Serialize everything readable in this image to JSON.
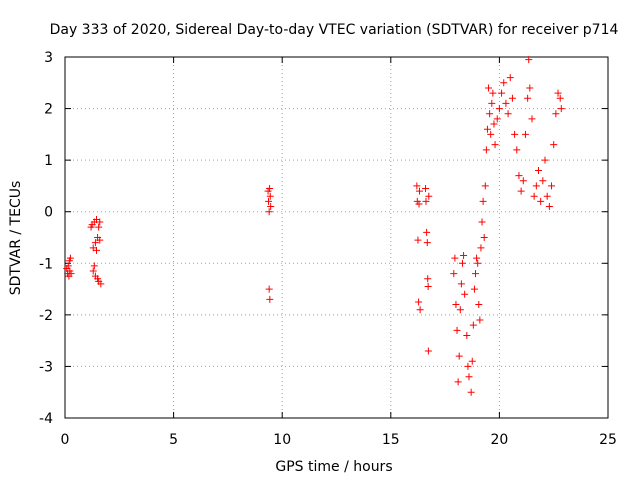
{
  "chart_data": {
    "type": "scatter",
    "title": "Day 333 of 2020, Sidereal Day-to-day VTEC variation (SDTVAR) for receiver p714",
    "xlabel": "GPS time / hours",
    "ylabel": "SDTVAR / TECUs",
    "xlim": [
      0,
      25
    ],
    "ylim": [
      -4,
      3
    ],
    "xticks": [
      "0",
      "5",
      "10",
      "15",
      "20",
      "25"
    ],
    "yticks": [
      "-4",
      "-3",
      "-2",
      "-1",
      "0",
      "1",
      "2",
      "3"
    ],
    "xtick_values": [
      0,
      5,
      10,
      15,
      20,
      25
    ],
    "ytick_values": [
      -4,
      -3,
      -2,
      -1,
      0,
      1,
      2,
      3
    ],
    "grid": true,
    "marker": "plus",
    "color": "#ff0000",
    "series": [
      {
        "points": [
          [
            0.08,
            -1.1
          ],
          [
            0.12,
            -1.2
          ],
          [
            0.15,
            -1.05
          ],
          [
            0.18,
            -1.25
          ],
          [
            0.2,
            -0.95
          ],
          [
            0.22,
            -1.15
          ],
          [
            0.25,
            -0.9
          ],
          [
            0.28,
            -1.2
          ],
          [
            1.2,
            -0.3
          ],
          [
            1.25,
            -0.25
          ],
          [
            1.3,
            -0.7
          ],
          [
            1.3,
            -1.15
          ],
          [
            1.35,
            -0.2
          ],
          [
            1.35,
            -1.05
          ],
          [
            1.4,
            -0.6
          ],
          [
            1.4,
            -1.25
          ],
          [
            1.45,
            -0.15
          ],
          [
            1.45,
            -0.75
          ],
          [
            1.5,
            -1.3
          ],
          [
            1.5,
            -0.5
          ],
          [
            1.55,
            -0.3
          ],
          [
            1.55,
            -1.35
          ],
          [
            1.6,
            -0.55
          ],
          [
            1.6,
            -0.2
          ],
          [
            1.65,
            -1.4
          ],
          [
            9.35,
            0.4
          ],
          [
            9.37,
            0.2
          ],
          [
            9.4,
            0.0
          ],
          [
            9.4,
            -1.5
          ],
          [
            9.42,
            0.45
          ],
          [
            9.43,
            -1.7
          ],
          [
            9.45,
            0.3
          ],
          [
            9.47,
            0.1
          ],
          [
            16.2,
            0.5
          ],
          [
            16.22,
            0.2
          ],
          [
            16.25,
            -0.55
          ],
          [
            16.28,
            -1.75
          ],
          [
            16.3,
            0.15
          ],
          [
            16.32,
            0.4
          ],
          [
            16.35,
            -1.9
          ],
          [
            16.6,
            0.45
          ],
          [
            16.62,
            0.2
          ],
          [
            16.65,
            -0.4
          ],
          [
            16.68,
            -0.6
          ],
          [
            16.7,
            -1.3
          ],
          [
            16.72,
            -1.45
          ],
          [
            16.73,
            -2.7
          ],
          [
            16.75,
            0.3
          ],
          [
            17.9,
            -1.2
          ],
          [
            17.95,
            -0.9
          ],
          [
            18.0,
            -1.8
          ],
          [
            18.05,
            -2.3
          ],
          [
            18.1,
            -3.3
          ],
          [
            18.15,
            -2.8
          ],
          [
            18.2,
            -1.9
          ],
          [
            18.25,
            -1.4
          ],
          [
            18.3,
            -1.0
          ],
          [
            18.35,
            -0.85
          ],
          [
            18.4,
            -1.6
          ],
          [
            18.5,
            -2.4
          ],
          [
            18.55,
            -3.0
          ],
          [
            18.6,
            -3.2
          ],
          [
            18.7,
            -3.5
          ],
          [
            18.75,
            -2.9
          ],
          [
            18.8,
            -2.2
          ],
          [
            18.85,
            -1.5
          ],
          [
            18.9,
            -1.2
          ],
          [
            18.95,
            -0.9
          ],
          [
            19.0,
            -1.0
          ],
          [
            19.05,
            -1.8
          ],
          [
            19.1,
            -2.1
          ],
          [
            19.15,
            -0.7
          ],
          [
            19.2,
            -0.2
          ],
          [
            19.25,
            0.2
          ],
          [
            19.3,
            -0.5
          ],
          [
            19.35,
            0.5
          ],
          [
            19.4,
            1.2
          ],
          [
            19.45,
            1.6
          ],
          [
            19.5,
            2.4
          ],
          [
            19.55,
            1.9
          ],
          [
            19.6,
            1.5
          ],
          [
            19.65,
            2.1
          ],
          [
            19.7,
            2.3
          ],
          [
            19.75,
            1.7
          ],
          [
            19.8,
            1.3
          ],
          [
            19.9,
            1.8
          ],
          [
            20.0,
            2.0
          ],
          [
            20.1,
            2.3
          ],
          [
            20.2,
            2.5
          ],
          [
            20.3,
            2.1
          ],
          [
            20.4,
            1.9
          ],
          [
            20.5,
            2.6
          ],
          [
            20.6,
            2.2
          ],
          [
            20.7,
            1.5
          ],
          [
            20.8,
            1.2
          ],
          [
            20.9,
            0.7
          ],
          [
            21.0,
            0.4
          ],
          [
            21.1,
            0.6
          ],
          [
            21.2,
            1.5
          ],
          [
            21.3,
            2.2
          ],
          [
            21.35,
            2.95
          ],
          [
            21.4,
            2.4
          ],
          [
            21.5,
            1.8
          ],
          [
            21.6,
            0.3
          ],
          [
            21.7,
            0.5
          ],
          [
            21.8,
            0.8
          ],
          [
            21.9,
            0.2
          ],
          [
            22.0,
            0.6
          ],
          [
            22.1,
            1.0
          ],
          [
            22.2,
            0.3
          ],
          [
            22.3,
            0.1
          ],
          [
            22.4,
            0.5
          ],
          [
            22.5,
            1.3
          ],
          [
            22.6,
            1.9
          ],
          [
            22.7,
            2.3
          ],
          [
            22.8,
            2.2
          ],
          [
            22.85,
            2.0
          ]
        ]
      }
    ]
  }
}
